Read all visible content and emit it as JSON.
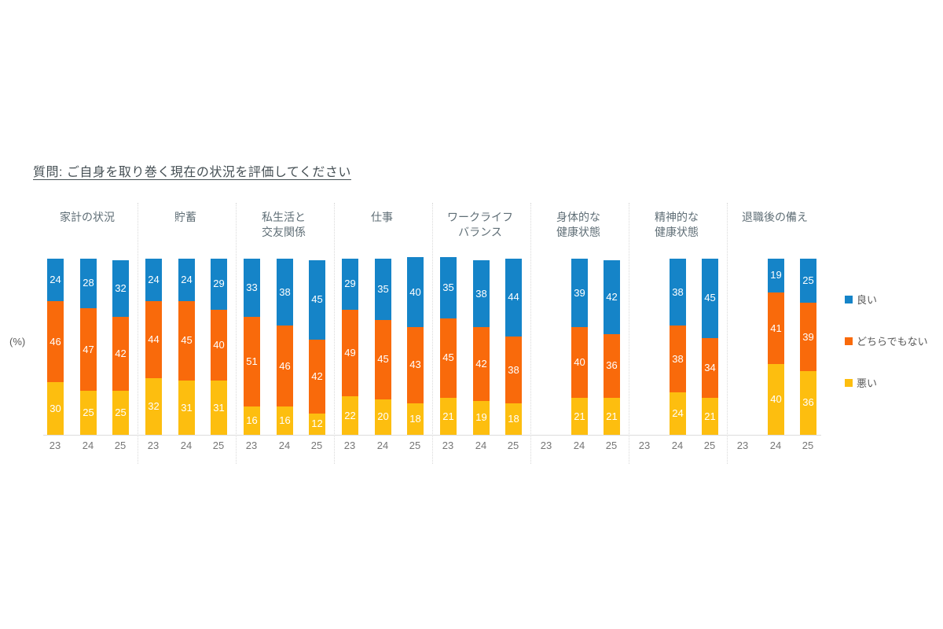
{
  "title": "質問: ご自身を取り巻く現在の状況を評価してください",
  "y_axis_label": "(%)",
  "chart_data": {
    "type": "bar",
    "subtype": "stacked-column",
    "unit": "%",
    "stack_total": 100,
    "grid": false,
    "legend_position": "right",
    "x_years": [
      "23",
      "24",
      "25"
    ],
    "categories": [
      "家計の状況",
      "貯蓄",
      "私生活と交友関係",
      "仕事",
      "ワークライフバランス",
      "身体的な健康状態",
      "精神的な健康状態",
      "退職後の備え"
    ],
    "category_label_lines": [
      [
        "家計の状況"
      ],
      [
        "貯蓄"
      ],
      [
        "私生活と",
        "交友関係"
      ],
      [
        "仕事"
      ],
      [
        "ワークライフ",
        "バランス"
      ],
      [
        "身体的な",
        "健康状態"
      ],
      [
        "精神的な",
        "健康状態"
      ],
      [
        "退職後の備え"
      ]
    ],
    "series": [
      {
        "name": "良い",
        "color": "#1584c8",
        "values": [
          [
            24,
            28,
            32
          ],
          [
            24,
            24,
            29
          ],
          [
            33,
            38,
            45
          ],
          [
            29,
            35,
            40
          ],
          [
            35,
            38,
            44
          ],
          [
            null,
            39,
            42
          ],
          [
            null,
            38,
            45
          ],
          [
            null,
            19,
            25
          ]
        ]
      },
      {
        "name": "どちらでもない",
        "color": "#f96a0b",
        "values": [
          [
            46,
            47,
            42
          ],
          [
            44,
            45,
            40
          ],
          [
            51,
            46,
            42
          ],
          [
            49,
            45,
            43
          ],
          [
            45,
            42,
            38
          ],
          [
            null,
            40,
            36
          ],
          [
            null,
            38,
            34
          ],
          [
            null,
            41,
            39
          ]
        ]
      },
      {
        "name": "悪い",
        "color": "#fdbe0f",
        "values": [
          [
            30,
            25,
            25
          ],
          [
            32,
            31,
            31
          ],
          [
            16,
            16,
            12
          ],
          [
            22,
            20,
            18
          ],
          [
            21,
            19,
            18
          ],
          [
            null,
            21,
            21
          ],
          [
            null,
            24,
            21
          ],
          [
            null,
            40,
            36
          ]
        ]
      }
    ]
  }
}
